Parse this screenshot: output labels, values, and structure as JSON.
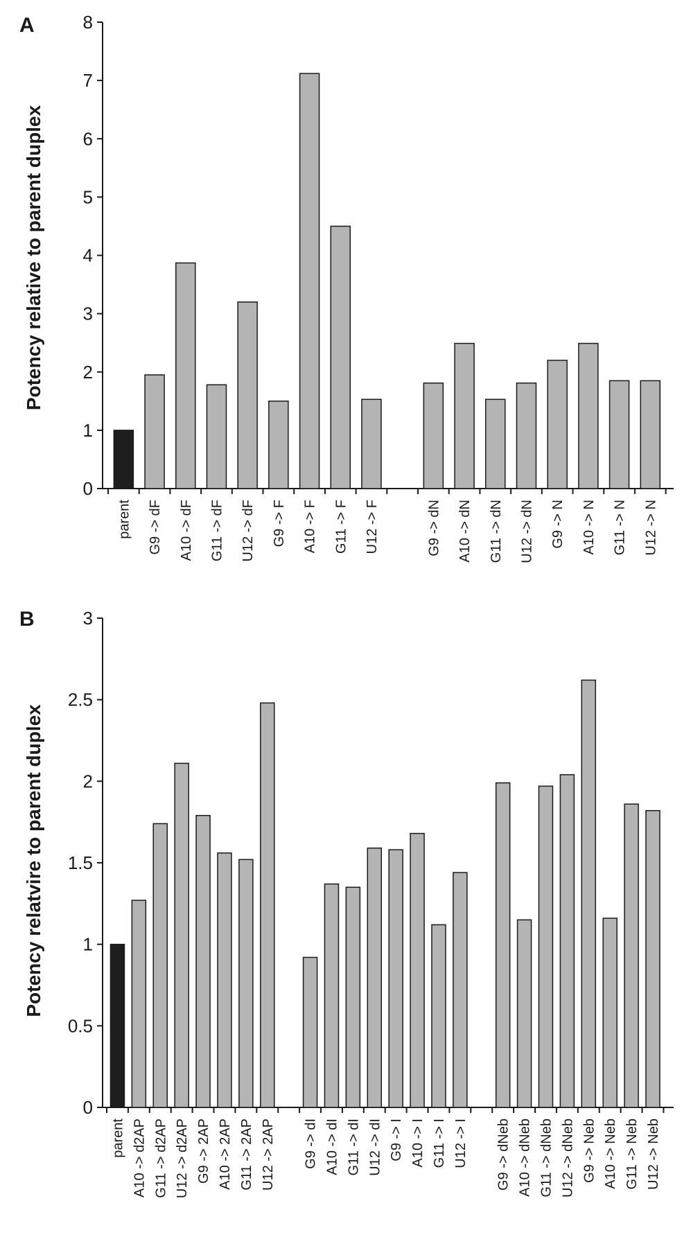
{
  "chart_data": [
    {
      "panel": "A",
      "type": "bar",
      "title": "",
      "xlabel": "",
      "ylabel": "Potency relative to parent duplex",
      "ylim": [
        0,
        8
      ],
      "yticks": [
        "0",
        "1",
        "2",
        "3",
        "4",
        "5",
        "6",
        "7",
        "8"
      ],
      "grid": false,
      "legend": "none",
      "categories": [
        "parent",
        "G9 -> dF",
        "A10 -> dF",
        "G11 -> dF",
        "U12 -> dF",
        "G9 -> F",
        "A10 -> F",
        "G11 -> F",
        "U12 -> F",
        "",
        "G9 -> dN",
        "A10 -> dN",
        "G11 -> dN",
        "U12 -> dN",
        "G9 -> N",
        "A10 -> N",
        "G11 -> N",
        "U12 -> N"
      ],
      "values": [
        1.0,
        1.95,
        3.87,
        1.78,
        3.2,
        1.5,
        7.12,
        4.5,
        1.53,
        null,
        1.81,
        2.49,
        1.53,
        1.81,
        2.2,
        2.49,
        1.85,
        1.85
      ],
      "colors": {
        "parent": "#1e1e1e",
        "modified": "#b4b4b4",
        "outline": "#1a1a1a"
      }
    },
    {
      "panel": "B",
      "type": "bar",
      "title": "",
      "xlabel": "",
      "ylabel": "Potency relatvire to parent duplex",
      "ylim": [
        0,
        3
      ],
      "yticks": [
        "0",
        "0.5",
        "1",
        "1.5",
        "2",
        "2.5",
        "3"
      ],
      "grid": false,
      "legend": "none",
      "categories": [
        "parent",
        "A10 -> d2AP",
        "G11 -> d2AP",
        "U12 -> d2AP",
        "G9 -> 2AP",
        "A10 -> 2AP",
        "G11 -> 2AP",
        "U12 -> 2AP",
        "",
        "G9 -> dI",
        "A10 -> dI",
        "G11 -> dI",
        "U12 -> dI",
        "G9 -> I",
        "A10 -> I",
        "G11 -> I",
        "U12 -> I",
        "",
        "G9 -> dNeb",
        "A10 -> dNeb",
        "G11 -> dNeb",
        "U12 -> dNeb",
        "G9 -> Neb",
        "A10 -> Neb",
        "G11 -> Neb",
        "U12 -> Neb"
      ],
      "values": [
        1.0,
        1.27,
        1.74,
        2.11,
        1.79,
        1.56,
        1.52,
        2.48,
        null,
        0.92,
        1.37,
        1.35,
        1.59,
        1.58,
        1.68,
        1.12,
        1.44,
        null,
        1.99,
        1.15,
        1.97,
        2.04,
        2.62,
        1.16,
        1.86,
        1.82
      ],
      "colors": {
        "parent": "#1e1e1e",
        "modified": "#b4b4b4",
        "outline": "#1a1a1a"
      }
    }
  ]
}
